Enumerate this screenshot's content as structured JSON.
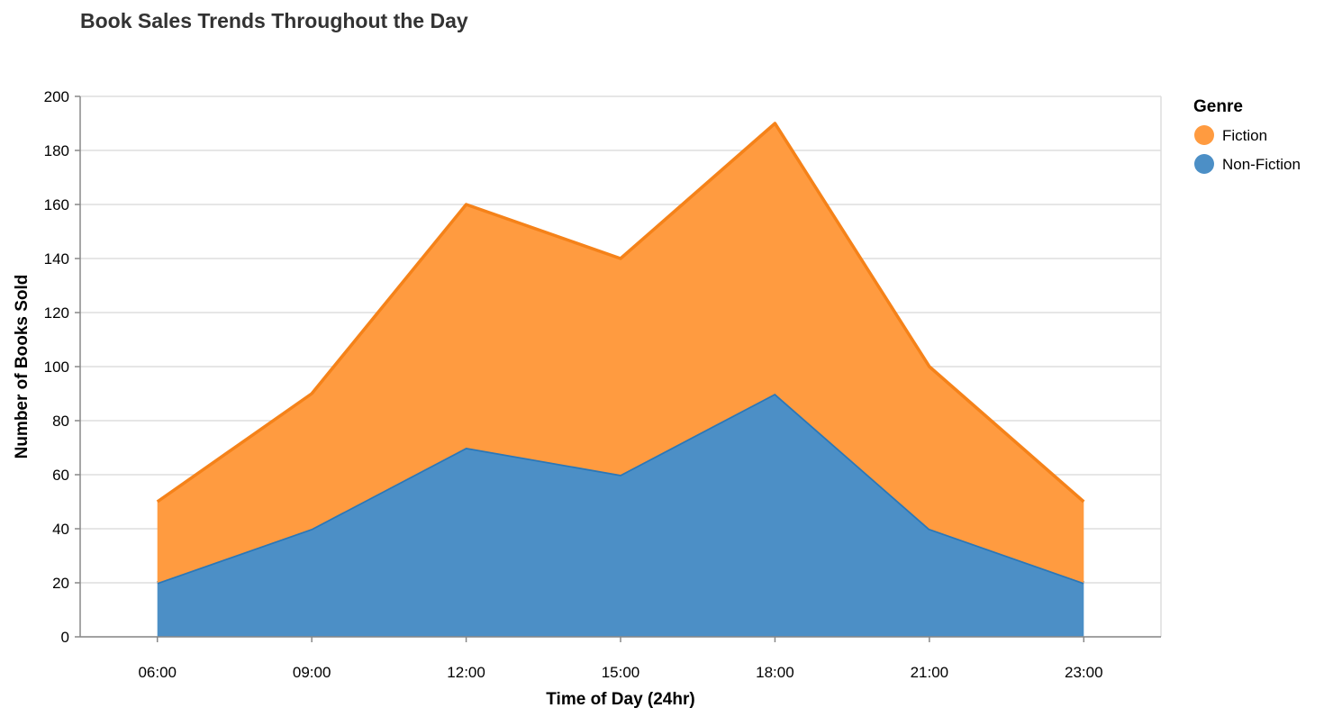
{
  "chart_data": {
    "type": "area",
    "stacked": true,
    "title": "Book Sales Trends Throughout the Day",
    "xlabel": "Time of Day (24hr)",
    "ylabel": "Number of Books Sold",
    "categories": [
      "06:00",
      "09:00",
      "12:00",
      "15:00",
      "18:00",
      "21:00",
      "23:00"
    ],
    "series": [
      {
        "name": "Non-Fiction",
        "values": [
          20,
          40,
          70,
          60,
          90,
          40,
          20
        ],
        "fill": "#4c8fc6",
        "stroke": "#2a77b8"
      },
      {
        "name": "Fiction",
        "values": [
          30,
          50,
          90,
          80,
          100,
          60,
          30
        ],
        "fill": "#ff9b40",
        "stroke": "#f58219"
      }
    ],
    "ylim": [
      0,
      200
    ],
    "yticks": [
      0,
      20,
      40,
      60,
      80,
      100,
      120,
      140,
      160,
      180,
      200
    ],
    "grid": true,
    "legend": {
      "title": "Genre",
      "position": "right",
      "items": [
        {
          "label": "Fiction",
          "color": "#ff9b40"
        },
        {
          "label": "Non-Fiction",
          "color": "#4c8fc6"
        }
      ]
    }
  }
}
